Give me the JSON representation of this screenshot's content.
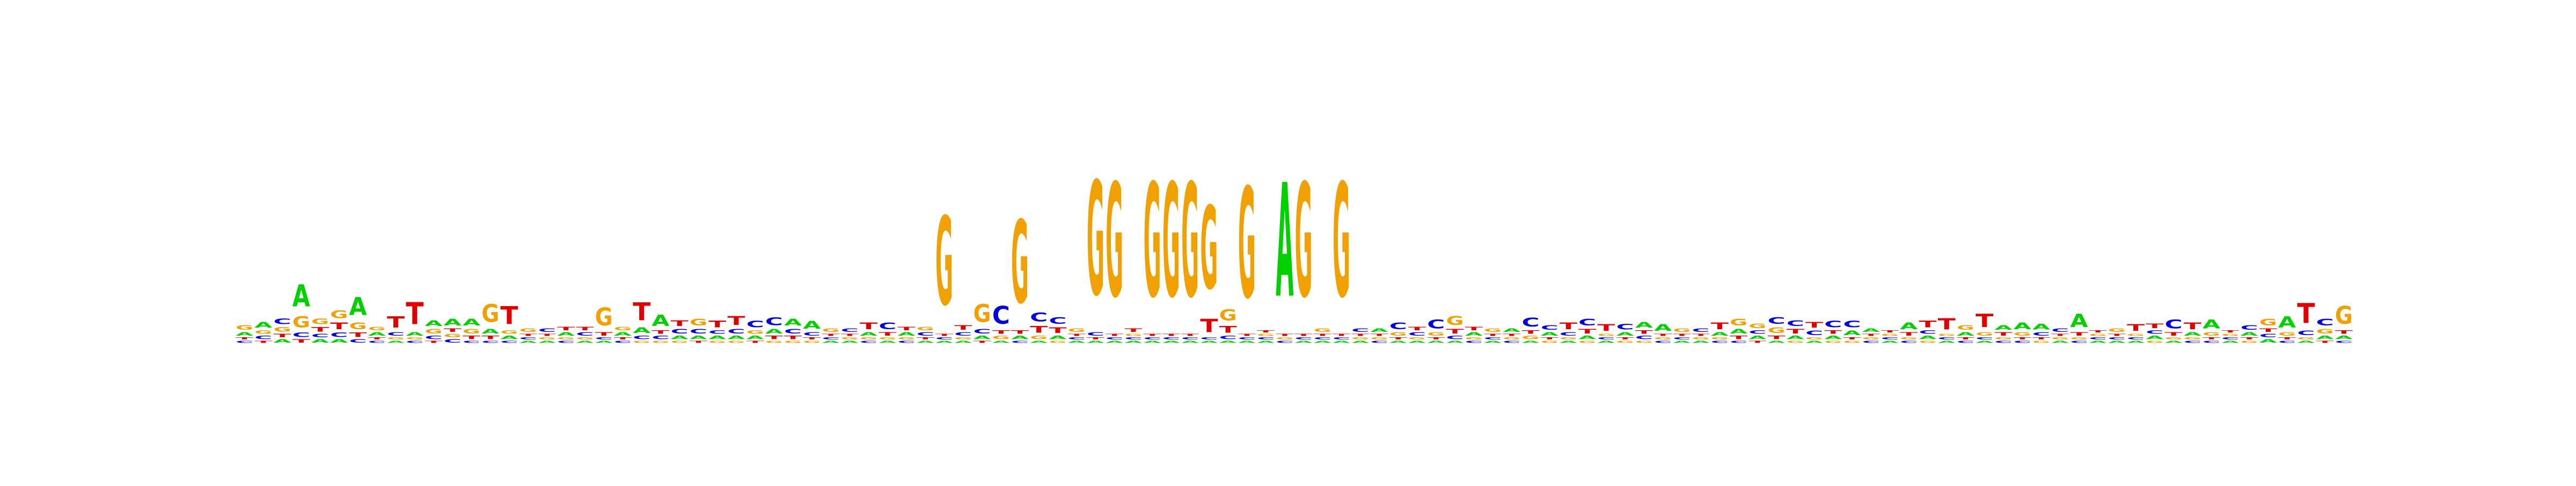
{
  "chart_data": {
    "type": "sequence-logo",
    "alphabet": [
      "A",
      "C",
      "G",
      "T"
    ],
    "colors": {
      "A": "#00d000",
      "C": "#0000e0",
      "G": "#f0a000",
      "T": "#e00000"
    },
    "ylim": [
      0,
      2
    ],
    "positions": [
      {
        "A": 0.03,
        "C": 0.02,
        "G": 0.04,
        "T": 0.02
      },
      {
        "A": 0.05,
        "C": 0.03,
        "G": 0.03,
        "T": 0.02
      },
      {
        "A": 0.03,
        "C": 0.05,
        "G": 0.04,
        "T": 0.03
      },
      {
        "A": 0.2,
        "C": 0.04,
        "G": 0.1,
        "T": 0.03
      },
      {
        "A": 0.03,
        "C": 0.03,
        "G": 0.05,
        "T": 0.04
      },
      {
        "A": 0.03,
        "C": 0.04,
        "G": 0.07,
        "T": 0.06
      },
      {
        "A": 0.16,
        "C": 0.03,
        "G": 0.06,
        "T": 0.04
      },
      {
        "A": 0.03,
        "C": 0.02,
        "G": 0.03,
        "T": 0.02
      },
      {
        "A": 0.02,
        "C": 0.03,
        "G": 0.02,
        "T": 0.1
      },
      {
        "A": 0.03,
        "C": 0.02,
        "G": 0.02,
        "T": 0.2
      },
      {
        "A": 0.05,
        "C": 0.03,
        "G": 0.04,
        "T": 0.02
      },
      {
        "A": 0.06,
        "C": 0.03,
        "G": 0.03,
        "T": 0.03
      },
      {
        "A": 0.06,
        "C": 0.02,
        "G": 0.04,
        "T": 0.03
      },
      {
        "A": 0.04,
        "C": 0.02,
        "G": 0.16,
        "T": 0.03
      },
      {
        "A": 0.03,
        "C": 0.02,
        "G": 0.03,
        "T": 0.16
      },
      {
        "A": 0.02,
        "C": 0.02,
        "G": 0.03,
        "T": 0.02
      },
      {
        "A": 0.02,
        "C": 0.03,
        "G": 0.02,
        "T": 0.02
      },
      {
        "A": 0.03,
        "C": 0.02,
        "G": 0.02,
        "T": 0.03
      },
      {
        "A": 0.02,
        "C": 0.03,
        "G": 0.02,
        "T": 0.03
      },
      {
        "A": 0.02,
        "C": 0.02,
        "G": 0.16,
        "T": 0.03
      },
      {
        "A": 0.03,
        "C": 0.02,
        "G": 0.03,
        "T": 0.02
      },
      {
        "A": 0.05,
        "C": 0.03,
        "G": 0.02,
        "T": 0.16
      },
      {
        "A": 0.1,
        "C": 0.03,
        "G": 0.02,
        "T": 0.03
      },
      {
        "A": 0.03,
        "C": 0.04,
        "G": 0.02,
        "T": 0.05
      },
      {
        "A": 0.03,
        "C": 0.04,
        "G": 0.06,
        "T": 0.02
      },
      {
        "A": 0.03,
        "C": 0.03,
        "G": 0.02,
        "T": 0.06
      },
      {
        "A": 0.03,
        "C": 0.04,
        "G": 0.02,
        "T": 0.08
      },
      {
        "A": 0.03,
        "C": 0.06,
        "G": 0.03,
        "T": 0.02
      },
      {
        "A": 0.04,
        "C": 0.07,
        "G": 0.02,
        "T": 0.03
      },
      {
        "A": 0.06,
        "C": 0.04,
        "G": 0.02,
        "T": 0.03
      },
      {
        "A": 0.07,
        "C": 0.03,
        "G": 0.02,
        "T": 0.02
      },
      {
        "A": 0.02,
        "C": 0.02,
        "G": 0.03,
        "T": 0.02
      },
      {
        "A": 0.02,
        "C": 0.03,
        "G": 0.02,
        "T": 0.02
      },
      {
        "A": 0.03,
        "C": 0.02,
        "G": 0.02,
        "T": 0.06
      },
      {
        "A": 0.02,
        "C": 0.06,
        "G": 0.02,
        "T": 0.03
      },
      {
        "A": 0.03,
        "C": 0.02,
        "G": 0.02,
        "T": 0.03
      },
      {
        "A": 0.02,
        "C": 0.03,
        "G": 0.03,
        "T": 0.02
      },
      {
        "A": 0.02,
        "C": 0.02,
        "G": 0.8,
        "T": 0.02
      },
      {
        "A": 0.02,
        "C": 0.03,
        "G": 0.02,
        "T": 0.04
      },
      {
        "A": 0.03,
        "C": 0.04,
        "G": 0.16,
        "T": 0.02
      },
      {
        "A": 0.02,
        "C": 0.16,
        "G": 0.03,
        "T": 0.03
      },
      {
        "A": 0.03,
        "C": 0.02,
        "G": 0.75,
        "T": 0.03
      },
      {
        "A": 0.02,
        "C": 0.08,
        "G": 0.03,
        "T": 0.06
      },
      {
        "A": 0.03,
        "C": 0.06,
        "G": 0.02,
        "T": 0.05
      },
      {
        "A": 0.02,
        "C": 0.02,
        "G": 0.03,
        "T": 0.02
      },
      {
        "A": 0.02,
        "C": 0.03,
        "G": 1.03,
        "T": 0.02
      },
      {
        "A": 0.02,
        "C": 0.02,
        "G": 1.03,
        "T": 0.02
      },
      {
        "A": 0.02,
        "C": 0.02,
        "G": 0.02,
        "T": 0.03
      },
      {
        "A": 0.02,
        "C": 0.02,
        "G": 1.03,
        "T": 0.02
      },
      {
        "A": 0.02,
        "C": 0.02,
        "G": 1.03,
        "T": 0.02
      },
      {
        "A": 0.02,
        "C": 0.02,
        "G": 1.03,
        "T": 0.02
      },
      {
        "A": 0.02,
        "C": 0.02,
        "G": 0.75,
        "T": 0.12
      },
      {
        "A": 0.02,
        "C": 0.03,
        "G": 0.1,
        "T": 0.06
      },
      {
        "A": 0.02,
        "C": 0.02,
        "G": 1.0,
        "T": 0.02
      },
      {
        "A": 0.02,
        "C": 0.02,
        "G": 0.02,
        "T": 0.02
      },
      {
        "A": 1.03,
        "C": 0.02,
        "G": 0.02,
        "T": 0.02
      },
      {
        "A": 0.02,
        "C": 0.02,
        "G": 1.03,
        "T": 0.02
      },
      {
        "A": 0.02,
        "C": 0.02,
        "G": 0.03,
        "T": 0.02
      },
      {
        "A": 0.02,
        "C": 0.02,
        "G": 1.03,
        "T": 0.02
      },
      {
        "A": 0.02,
        "C": 0.03,
        "G": 0.02,
        "T": 0.02
      },
      {
        "A": 0.03,
        "C": 0.02,
        "G": 0.02,
        "T": 0.02
      },
      {
        "A": 0.02,
        "C": 0.06,
        "G": 0.03,
        "T": 0.02
      },
      {
        "A": 0.02,
        "C": 0.03,
        "G": 0.02,
        "T": 0.03
      },
      {
        "A": 0.02,
        "C": 0.08,
        "G": 0.03,
        "T": 0.02
      },
      {
        "A": 0.02,
        "C": 0.03,
        "G": 0.08,
        "T": 0.04
      },
      {
        "A": 0.03,
        "C": 0.02,
        "G": 0.02,
        "T": 0.03
      },
      {
        "A": 0.02,
        "C": 0.02,
        "G": 0.03,
        "T": 0.02
      },
      {
        "A": 0.03,
        "C": 0.02,
        "G": 0.02,
        "T": 0.02
      },
      {
        "A": 0.02,
        "C": 0.08,
        "G": 0.03,
        "T": 0.03
      },
      {
        "A": 0.03,
        "C": 0.04,
        "G": 0.02,
        "T": 0.02
      },
      {
        "A": 0.02,
        "C": 0.03,
        "G": 0.02,
        "T": 0.06
      },
      {
        "A": 0.03,
        "C": 0.06,
        "G": 0.02,
        "T": 0.04
      },
      {
        "A": 0.02,
        "C": 0.02,
        "G": 0.02,
        "T": 0.06
      },
      {
        "A": 0.03,
        "C": 0.05,
        "G": 0.02,
        "T": 0.02
      },
      {
        "A": 0.05,
        "C": 0.03,
        "G": 0.02,
        "T": 0.03
      },
      {
        "A": 0.06,
        "C": 0.02,
        "G": 0.02,
        "T": 0.02
      },
      {
        "A": 0.02,
        "C": 0.02,
        "G": 0.03,
        "T": 0.02
      },
      {
        "A": 0.02,
        "C": 0.03,
        "G": 0.02,
        "T": 0.02
      },
      {
        "A": 0.03,
        "C": 0.02,
        "G": 0.02,
        "T": 0.06
      },
      {
        "A": 0.04,
        "C": 0.02,
        "G": 0.06,
        "T": 0.03
      },
      {
        "A": 0.03,
        "C": 0.03,
        "G": 0.04,
        "T": 0.02
      },
      {
        "A": 0.02,
        "C": 0.06,
        "G": 0.05,
        "T": 0.03
      },
      {
        "A": 0.03,
        "C": 0.05,
        "G": 0.02,
        "T": 0.04
      },
      {
        "A": 0.02,
        "C": 0.04,
        "G": 0.02,
        "T": 0.05
      },
      {
        "A": 0.03,
        "C": 0.06,
        "G": 0.02,
        "T": 0.03
      },
      {
        "A": 0.04,
        "C": 0.06,
        "G": 0.02,
        "T": 0.02
      },
      {
        "A": 0.03,
        "C": 0.02,
        "G": 0.02,
        "T": 0.02
      },
      {
        "A": 0.02,
        "C": 0.02,
        "G": 0.02,
        "T": 0.02
      },
      {
        "A": 0.06,
        "C": 0.02,
        "G": 0.02,
        "T": 0.03
      },
      {
        "A": 0.03,
        "C": 0.03,
        "G": 0.02,
        "T": 0.06
      },
      {
        "A": 0.02,
        "C": 0.02,
        "G": 0.02,
        "T": 0.1
      },
      {
        "A": 0.03,
        "C": 0.02,
        "G": 0.04,
        "T": 0.02
      },
      {
        "A": 0.02,
        "C": 0.02,
        "G": 0.03,
        "T": 0.12
      },
      {
        "A": 0.04,
        "C": 0.02,
        "G": 0.02,
        "T": 0.03
      },
      {
        "A": 0.06,
        "C": 0.02,
        "G": 0.03,
        "T": 0.02
      },
      {
        "A": 0.05,
        "C": 0.03,
        "G": 0.02,
        "T": 0.02
      },
      {
        "A": 0.02,
        "C": 0.03,
        "G": 0.02,
        "T": 0.02
      },
      {
        "A": 0.12,
        "C": 0.02,
        "G": 0.02,
        "T": 0.03
      },
      {
        "A": 0.02,
        "C": 0.02,
        "G": 0.02,
        "T": 0.02
      },
      {
        "A": 0.02,
        "C": 0.02,
        "G": 0.03,
        "T": 0.02
      },
      {
        "A": 0.02,
        "C": 0.02,
        "G": 0.02,
        "T": 0.06
      },
      {
        "A": 0.03,
        "C": 0.03,
        "G": 0.02,
        "T": 0.04
      },
      {
        "A": 0.02,
        "C": 0.08,
        "G": 0.02,
        "T": 0.03
      },
      {
        "A": 0.03,
        "C": 0.02,
        "G": 0.02,
        "T": 0.06
      },
      {
        "A": 0.08,
        "C": 0.02,
        "G": 0.03,
        "T": 0.02
      },
      {
        "A": 0.02,
        "C": 0.02,
        "G": 0.02,
        "T": 0.02
      },
      {
        "A": 0.03,
        "C": 0.04,
        "G": 0.02,
        "T": 0.02
      },
      {
        "A": 0.03,
        "C": 0.03,
        "G": 0.06,
        "T": 0.03
      },
      {
        "A": 0.1,
        "C": 0.02,
        "G": 0.03,
        "T": 0.02
      },
      {
        "A": 0.02,
        "C": 0.04,
        "G": 0.02,
        "T": 0.18
      },
      {
        "A": 0.03,
        "C": 0.06,
        "G": 0.04,
        "T": 0.02
      },
      {
        "A": 0.03,
        "C": 0.02,
        "G": 0.16,
        "T": 0.03
      }
    ]
  }
}
